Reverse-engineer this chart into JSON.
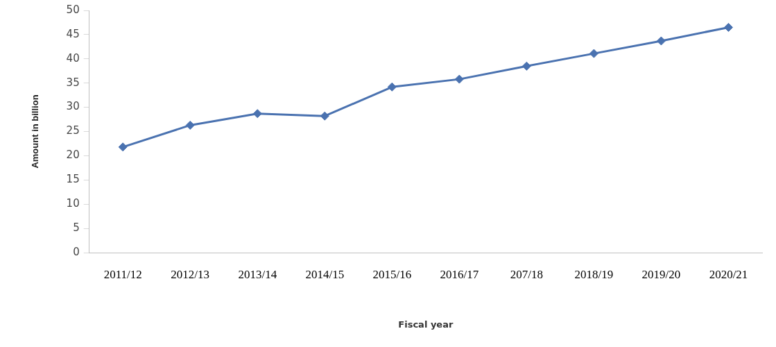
{
  "chart_data": {
    "type": "line",
    "xlabel": "Fiscal year",
    "ylabel": "Amount in billion",
    "categories": [
      "2011/12",
      "2012/13",
      "2013/14",
      "2014/15",
      "2015/16",
      "2016/17",
      "207/18",
      "2018/19",
      "2019/20",
      "2020/21"
    ],
    "series": [
      {
        "color": "#4a72b0",
        "values": [
          21.8,
          26.3,
          28.7,
          28.2,
          34.2,
          35.8,
          38.5,
          41.1,
          43.7,
          46.5
        ]
      }
    ],
    "ylim": [
      0,
      50
    ],
    "yticks": [
      0,
      5,
      10,
      15,
      20,
      25,
      30,
      35,
      40,
      45,
      50
    ],
    "grid": false,
    "legend": false,
    "marker": "diamond",
    "line_style": "solid"
  }
}
